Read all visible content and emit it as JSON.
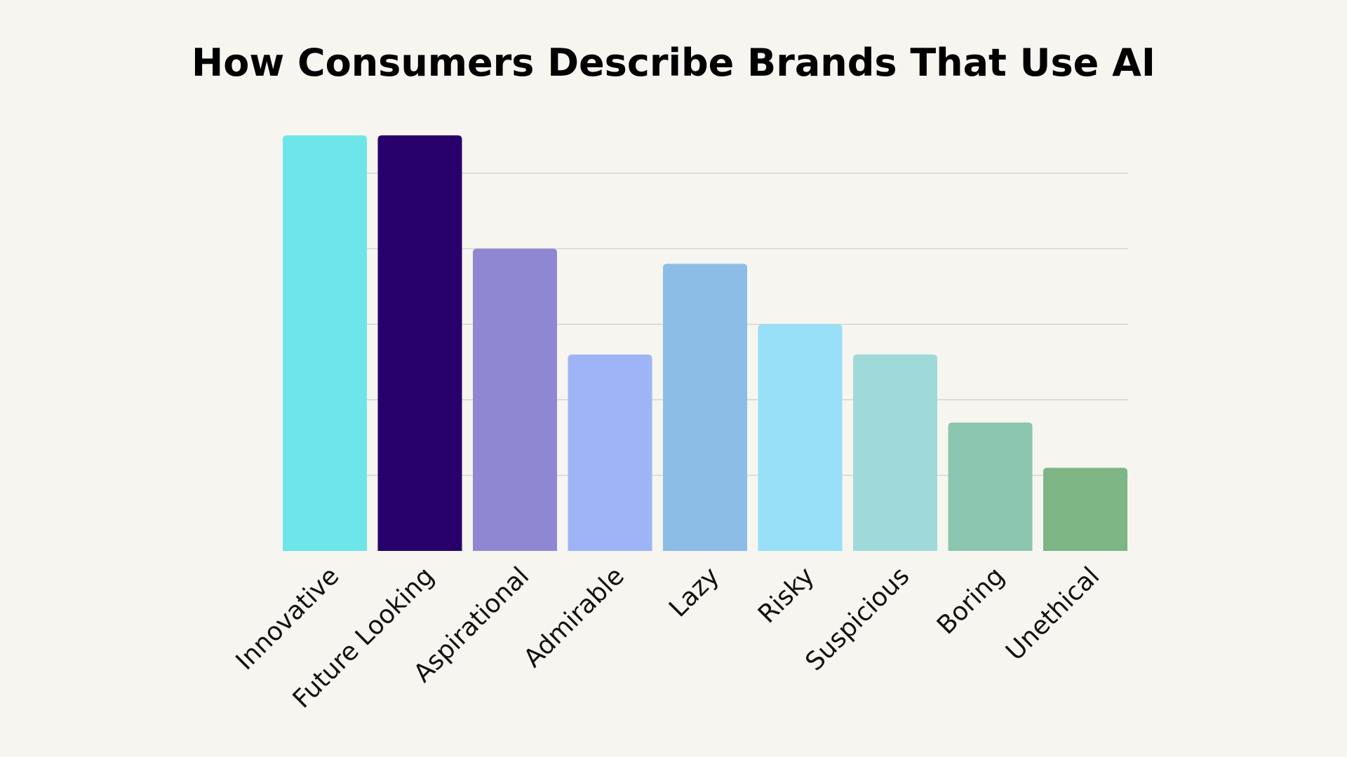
{
  "chart_data": {
    "type": "bar",
    "title": "How Consumers Describe Brands That Use AI",
    "xlabel": "",
    "ylabel": "",
    "categories": [
      "Innovative",
      "Future Looking",
      "Aspirational",
      "Admirable",
      "Lazy",
      "Risky",
      "Suspicious",
      "Boring",
      "Unethical"
    ],
    "values": [
      55,
      55,
      40,
      26,
      38,
      30,
      26,
      17,
      11
    ],
    "ylim": [
      0,
      60
    ],
    "gridlines": [
      10,
      20,
      30,
      40,
      50
    ],
    "grid": true,
    "y_tick_labels_shown": false,
    "colors": [
      "#6ee6e9",
      "#27006b",
      "#8f87d1",
      "#9eb4f7",
      "#8bbde6",
      "#97e0f7",
      "#a0d9d9",
      "#8cc5af",
      "#7db584"
    ],
    "background": "#f7f5f0"
  }
}
